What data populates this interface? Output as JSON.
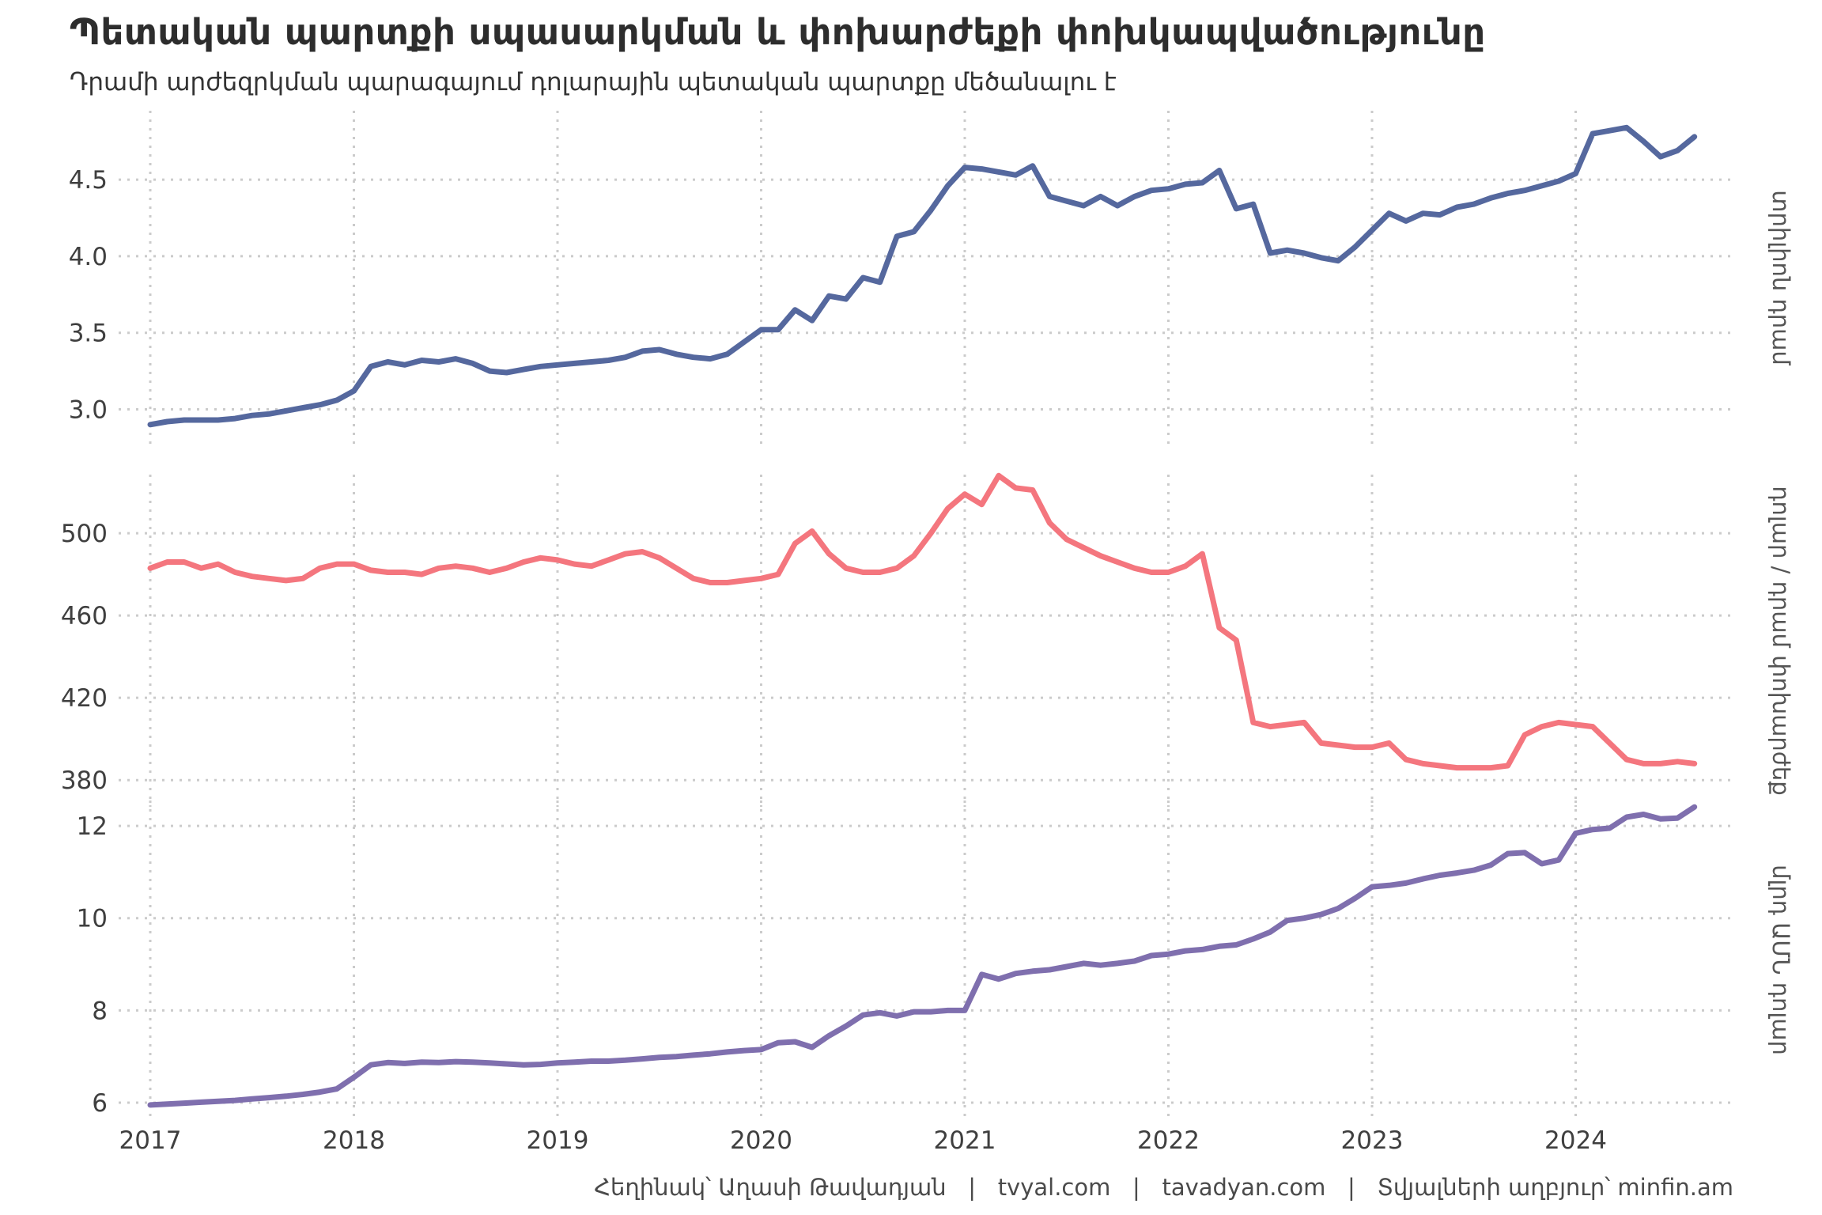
{
  "header": {
    "title": "Պետական պարտքի սպասարկման և փոխարժեքի փոխկապվածությունը",
    "subtitle": "Դրամի արժեզրկման պարագայում դոլարային պետական պարտքը մեծանալու է"
  },
  "caption": {
    "text": "Հեղինակ՝ Աղասի Թավադյան   |   tvyal.com   |   tavadyan.com   |   Տվյալների աղբյուր՝ minfin.am"
  },
  "colors": {
    "debt_amd_line": "#55689e",
    "fx_line": "#f4767e",
    "debt_usd_line": "#7f6fae",
    "grid": "#cbcbcb",
    "axis_text": "#3f3f3f",
    "strip_text": "#555555",
    "background": "#ffffff"
  },
  "chart_data": {
    "type": "line",
    "title": "Պետական պարտքի սպասարկման և փոխարժեքի փոխկապվածությունը",
    "subtitle": "Դրամի արժեզրկման պարագայում դոլարային պետական պարտքը մեծանալու է",
    "x": {
      "unit": "month",
      "start": "2017-01",
      "end": "2024-08",
      "tick_labels": [
        "2017",
        "2018",
        "2019",
        "2020",
        "2021",
        "2022",
        "2023",
        "2024"
      ]
    },
    "grid": "dotted",
    "legend": "none",
    "panels": [
      {
        "id": "debt_trillion_amd",
        "strip_label": "տրիլիոն դրամ",
        "color": "#55689e",
        "ylim": [
          2.77,
          4.95
        ],
        "ytick_values": [
          3.0,
          3.5,
          4.0,
          4.5
        ],
        "ytick_labels": [
          "3.0",
          "3.5",
          "4.0",
          "4.5"
        ],
        "values": [
          2.9,
          2.92,
          2.93,
          2.93,
          2.93,
          2.94,
          2.96,
          2.97,
          2.99,
          3.01,
          3.03,
          3.06,
          3.12,
          3.28,
          3.31,
          3.29,
          3.32,
          3.31,
          3.33,
          3.3,
          3.25,
          3.24,
          3.26,
          3.28,
          3.29,
          3.3,
          3.31,
          3.32,
          3.34,
          3.38,
          3.39,
          3.36,
          3.34,
          3.33,
          3.36,
          3.44,
          3.52,
          3.52,
          3.65,
          3.58,
          3.74,
          3.72,
          3.86,
          3.83,
          4.13,
          4.16,
          4.3,
          4.46,
          4.58,
          4.57,
          4.55,
          4.53,
          4.59,
          4.39,
          4.36,
          4.33,
          4.39,
          4.33,
          4.39,
          4.43,
          4.44,
          4.47,
          4.48,
          4.56,
          4.31,
          4.34,
          4.02,
          4.04,
          4.02,
          3.99,
          3.97,
          4.06,
          4.17,
          4.28,
          4.23,
          4.28,
          4.27,
          4.32,
          4.34,
          4.38,
          4.41,
          4.43,
          4.46,
          4.49,
          4.54,
          4.8,
          4.82,
          4.84,
          4.75,
          4.65,
          4.69,
          4.78
        ]
      },
      {
        "id": "fx_rate_amd_per_usd",
        "strip_label": "դոլար / դրամ փոխարժեք",
        "color": "#f4767e",
        "ylim": [
          367,
          528.5
        ],
        "ytick_values": [
          380,
          420,
          460,
          500
        ],
        "ytick_labels": [
          "380",
          "420",
          "460",
          "500"
        ],
        "values": [
          483,
          486,
          486,
          483,
          485,
          481,
          479,
          478,
          477,
          478,
          483,
          485,
          485,
          482,
          481,
          481,
          480,
          483,
          484,
          483,
          481,
          483,
          486,
          488,
          487,
          485,
          484,
          487,
          490,
          491,
          488,
          483,
          478,
          476,
          476,
          477,
          478,
          480,
          495,
          501,
          490,
          483,
          481,
          481,
          483,
          489,
          500,
          512,
          519,
          514,
          528,
          522,
          521,
          505,
          497,
          493,
          489,
          486,
          483,
          481,
          481,
          484,
          490,
          454,
          448,
          408,
          406,
          407,
          408,
          398,
          397,
          396,
          396,
          398,
          390,
          388,
          387,
          386,
          386,
          386,
          387,
          402,
          406,
          408,
          407,
          406,
          398,
          390,
          388,
          388,
          389,
          388
        ]
      },
      {
        "id": "debt_billion_usd",
        "strip_label": "մլրդ ԱՄՆ դոլար",
        "color": "#7f6fae",
        "ylim": [
          5.64,
          12.55
        ],
        "ytick_values": [
          6,
          8,
          10,
          12
        ],
        "ytick_labels": [
          "6",
          "8",
          "10",
          "12"
        ],
        "values": [
          5.95,
          5.97,
          5.99,
          6.01,
          6.03,
          6.05,
          6.08,
          6.11,
          6.14,
          6.18,
          6.23,
          6.3,
          6.55,
          6.82,
          6.87,
          6.85,
          6.88,
          6.87,
          6.89,
          6.88,
          6.86,
          6.84,
          6.82,
          6.83,
          6.86,
          6.88,
          6.9,
          6.9,
          6.92,
          6.95,
          6.98,
          7.0,
          7.03,
          7.06,
          7.1,
          7.13,
          7.15,
          7.3,
          7.32,
          7.2,
          7.45,
          7.66,
          7.9,
          7.95,
          7.88,
          7.97,
          7.97,
          8.0,
          8.0,
          8.78,
          8.68,
          8.8,
          8.85,
          8.88,
          8.95,
          9.02,
          8.98,
          9.02,
          9.07,
          9.19,
          9.22,
          9.29,
          9.32,
          9.39,
          9.42,
          9.55,
          9.7,
          9.95,
          10.0,
          10.08,
          10.21,
          10.43,
          10.68,
          10.71,
          10.76,
          10.85,
          10.93,
          10.98,
          11.04,
          11.15,
          11.4,
          11.42,
          11.18,
          11.26,
          11.84,
          11.92,
          11.95,
          12.19,
          12.25,
          12.15,
          12.17,
          12.41
        ]
      }
    ]
  }
}
